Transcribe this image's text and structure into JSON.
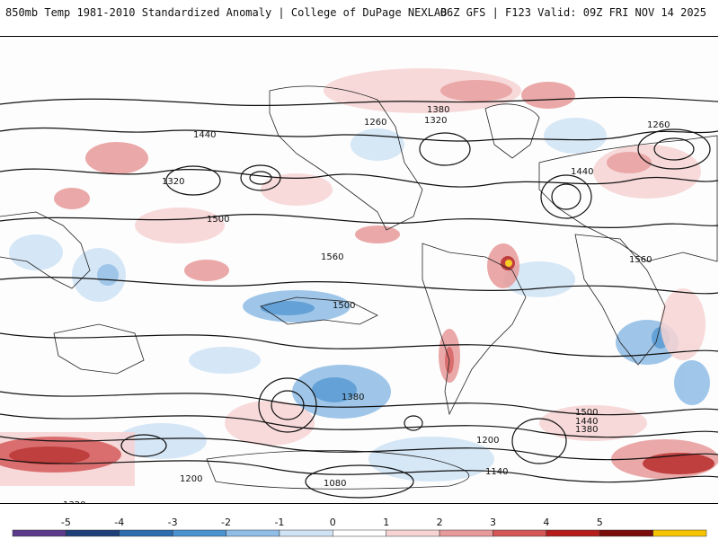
{
  "header": {
    "left": "850mb Temp 1981-2010 Standardized Anomaly | College of DuPage NEXLAB",
    "right": "06Z GFS | F123 Valid: 09Z FRI NOV 14 2025"
  },
  "map": {
    "contour_labels": [
      "1380",
      "1320",
      "1260",
      "1440",
      "1500",
      "1560",
      "1200",
      "1140",
      "1080",
      "1320",
      "1260",
      "1440",
      "1380",
      "1500",
      "1560",
      "1200",
      "1320",
      "1380",
      "1440",
      "1500"
    ]
  },
  "colorbar": {
    "ticks": [
      "-5",
      "-4",
      "-3",
      "-2",
      "-1",
      "0",
      "1",
      "2",
      "3",
      "4",
      "5"
    ],
    "colors": [
      "#5b3a8c",
      "#1f3f7a",
      "#2c6db0",
      "#4a92d0",
      "#8fbde6",
      "#cfe3f5",
      "#ffffff",
      "#f7d3d3",
      "#e79a9a",
      "#d45656",
      "#b51d1d",
      "#7a0c0c",
      "#f6c500"
    ]
  }
}
